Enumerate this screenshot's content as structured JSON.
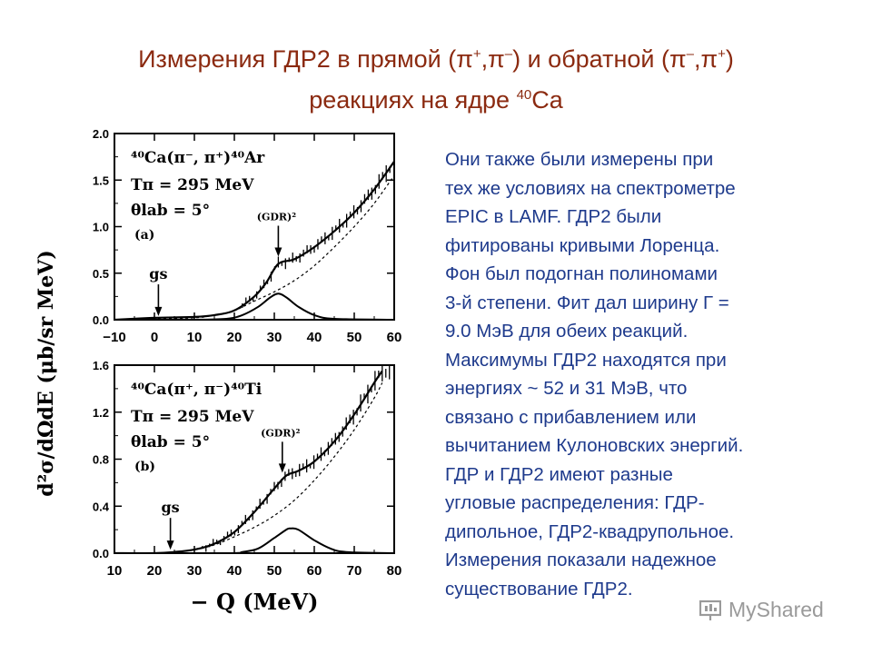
{
  "slide": {
    "title_part1": "Измерения ГДР2 в прямой (π",
    "title_sup1": "+",
    "title_part2": ",π",
    "title_sup2": "–",
    "title_part3": ") и обратной (π",
    "title_sup3": "–",
    "title_part4": ",π",
    "title_sup4": "+",
    "title_part5": ")",
    "title_line2_part1": "реакциях на ядре ",
    "title_line2_sup": "40",
    "title_line2_part2": "Ca",
    "body_lines": [
      "Они также были измерены при",
      "тех же условиях на спектрометре",
      "EPIC в LAMF. ГДР2 были",
      "фитированы кривыми Лоренца.",
      "Фон был подогнан полиномами",
      "3-й  степени. Фит дал ширину Г =",
      "9.0 МэВ для обеих реакций.",
      "Максимумы ГДР2 находятся при",
      "энергиях ~ 52 и 31 МэВ, что",
      "связано с прибавлением или",
      "вычитанием Кулоновских энергий.",
      "ГДР и ГДР2 имеют разные",
      "угловые распределения: ГДР-",
      "дипольное, ГДР2-квадрупольное.",
      "Измерения показали надежное",
      "существование ГДР2."
    ],
    "watermark": "MyShared"
  },
  "chart_data": [
    {
      "type": "line",
      "panel_label": "(a)",
      "reaction": "⁴⁰Ca(π⁻, π⁺)⁴⁰Ar",
      "energy_label": "Tπ = 295 MeV",
      "angle_label": "θlab = 5°",
      "peak_label": "(GDR)²",
      "gs_label": "gs",
      "ylabel": "d²σ/dΩdE (μb/sr MeV)",
      "xlim": [
        -10,
        60
      ],
      "ylim": [
        0,
        2.0
      ],
      "x_ticks": [
        -10,
        0,
        10,
        20,
        30,
        40,
        50,
        60
      ],
      "x_tick_labels": [
        "−10",
        "0",
        "10",
        "20",
        "30",
        "40",
        "50",
        "60"
      ],
      "y_ticks": [
        0,
        0.5,
        1.0,
        1.5,
        2.0
      ],
      "y_tick_labels": [
        "0.0",
        "0.5",
        "1.0",
        "1.5",
        "2.0"
      ],
      "gs_arrow_x": 1,
      "gdr_arrow_x": 31,
      "series": [
        {
          "values_x": [
            -10,
            0,
            10,
            15,
            20,
            25,
            28,
            31,
            35,
            40,
            45,
            50,
            55,
            60
          ],
          "values_y": [
            0,
            0.02,
            0.03,
            0.05,
            0.1,
            0.25,
            0.4,
            0.6,
            0.65,
            0.78,
            0.95,
            1.15,
            1.4,
            1.7
          ]
        },
        {
          "values_x": [
            -10,
            0,
            10,
            15,
            20,
            25,
            30,
            35,
            40,
            45,
            50,
            55,
            60
          ],
          "values_y": [
            0,
            0.01,
            0.02,
            0.05,
            0.1,
            0.2,
            0.3,
            0.42,
            0.58,
            0.78,
            1.0,
            1.25,
            1.55
          ]
        },
        {
          "values_x": [
            -10,
            0,
            10,
            18,
            22,
            26,
            29,
            31,
            33,
            36,
            40,
            45,
            60
          ],
          "values_y": [
            0,
            0,
            0,
            0.01,
            0.05,
            0.14,
            0.24,
            0.28,
            0.24,
            0.14,
            0.05,
            0.01,
            0
          ]
        }
      ]
    },
    {
      "type": "line",
      "panel_label": "(b)",
      "reaction": "⁴⁰Ca(π⁺, π⁻)⁴⁰Ti",
      "energy_label": "Tπ = 295 MeV",
      "angle_label": "θlab = 5°",
      "peak_label": "(GDR)²",
      "gs_label": "gs",
      "xlabel": "− Q (MeV)",
      "xlim": [
        10,
        80
      ],
      "ylim": [
        0,
        1.6
      ],
      "x_ticks": [
        10,
        20,
        30,
        40,
        50,
        60,
        70,
        80
      ],
      "x_tick_labels": [
        "10",
        "20",
        "30",
        "40",
        "50",
        "60",
        "70",
        "80"
      ],
      "y_ticks": [
        0,
        0.4,
        0.8,
        1.2,
        1.6
      ],
      "y_tick_labels": [
        "0.0",
        "0.4",
        "0.8",
        "1.2",
        "1.6"
      ],
      "gs_arrow_x": 24,
      "gdr_arrow_x": 52,
      "series": [
        {
          "values_x": [
            10,
            20,
            25,
            30,
            35,
            40,
            45,
            50,
            53,
            56,
            60,
            65,
            70,
            75,
            77
          ],
          "values_y": [
            0,
            0,
            0.01,
            0.03,
            0.08,
            0.18,
            0.35,
            0.55,
            0.66,
            0.7,
            0.78,
            0.95,
            1.18,
            1.45,
            1.55
          ]
        },
        {
          "values_x": [
            10,
            20,
            25,
            30,
            35,
            40,
            45,
            50,
            55,
            60,
            65,
            70,
            75,
            77
          ],
          "values_y": [
            0,
            0,
            0.01,
            0.03,
            0.07,
            0.14,
            0.22,
            0.32,
            0.45,
            0.62,
            0.82,
            1.05,
            1.32,
            1.45
          ]
        },
        {
          "values_x": [
            10,
            38,
            42,
            46,
            50,
            53,
            54,
            56,
            60,
            64,
            68,
            80
          ],
          "values_y": [
            0,
            0,
            0.01,
            0.04,
            0.13,
            0.2,
            0.21,
            0.2,
            0.11,
            0.04,
            0.01,
            0
          ]
        }
      ]
    }
  ]
}
